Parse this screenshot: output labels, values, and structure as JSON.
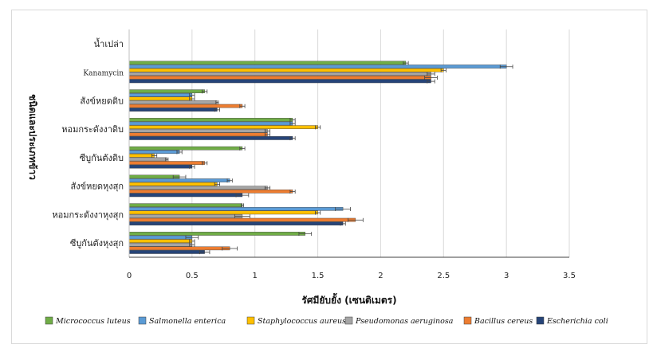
{
  "chart_data": {
    "type": "bar",
    "orientation": "horizontal",
    "title": "",
    "xlabel": "รัศมียับยั้ง (เซนติเมตร)",
    "ylabel": "ชนิดและประเภทข้าว",
    "xlim": [
      0,
      3.5
    ],
    "xticks": [
      "0",
      "0.5",
      "1",
      "1.5",
      "2",
      "2.5",
      "3",
      "3.5"
    ],
    "grid": "vertical",
    "legend_position": "bottom",
    "categories": [
      "น้ำเปล่า",
      "Kanamycin",
      "สังข์หยดดิบ",
      "หอมกระดังงาดิบ",
      "ซีบูกันตังดิบ",
      "สังข์หยดหุงสุก",
      "หอมกระดังงาหุงสุก",
      "ซีบูกันตังหุงสุก"
    ],
    "series": [
      {
        "name": "Micrococcus luteus",
        "color": "#70ad47",
        "values": [
          0,
          2.2,
          0.6,
          1.3,
          0.9,
          0.4,
          0.9,
          1.4
        ],
        "errors": [
          0,
          0.02,
          0.02,
          0.02,
          0.02,
          0.05,
          0.01,
          0.05
        ]
      },
      {
        "name": "Salmonella enterica",
        "color": "#5b9bd5",
        "values": [
          0,
          3.0,
          0.5,
          1.3,
          0.4,
          0.8,
          1.7,
          0.5
        ],
        "errors": [
          0,
          0.05,
          0.02,
          0.02,
          0.02,
          0.02,
          0.06,
          0.05
        ]
      },
      {
        "name": "Staphylococcus aureus",
        "color": "#ffc000",
        "values": [
          0,
          2.5,
          0.5,
          1.5,
          0.2,
          0.7,
          1.5,
          0.5
        ],
        "errors": [
          0,
          0.02,
          0.02,
          0.02,
          0.02,
          0.02,
          0.02,
          0.02
        ]
      },
      {
        "name": "Pseudomonas aeruginosa",
        "color": "#a5a5a5",
        "values": [
          0,
          2.4,
          0.7,
          1.1,
          0.3,
          1.1,
          0.9,
          0.5
        ],
        "errors": [
          0,
          0.03,
          0.01,
          0.02,
          0.01,
          0.02,
          0.06,
          0.02
        ]
      },
      {
        "name": "Bacillus cereus",
        "color": "#ed7d31",
        "values": [
          0,
          2.4,
          0.9,
          1.1,
          0.6,
          1.3,
          1.8,
          0.8
        ],
        "errors": [
          0,
          0.05,
          0.02,
          0.02,
          0.02,
          0.02,
          0.06,
          0.06
        ]
      },
      {
        "name": "Escherichia coli",
        "color": "#264478",
        "values": [
          0,
          2.4,
          0.7,
          1.3,
          0.5,
          0.9,
          1.7,
          0.6
        ],
        "errors": [
          0,
          0.03,
          0.02,
          0.02,
          0.02,
          0.05,
          0.02,
          0.04
        ]
      }
    ]
  }
}
